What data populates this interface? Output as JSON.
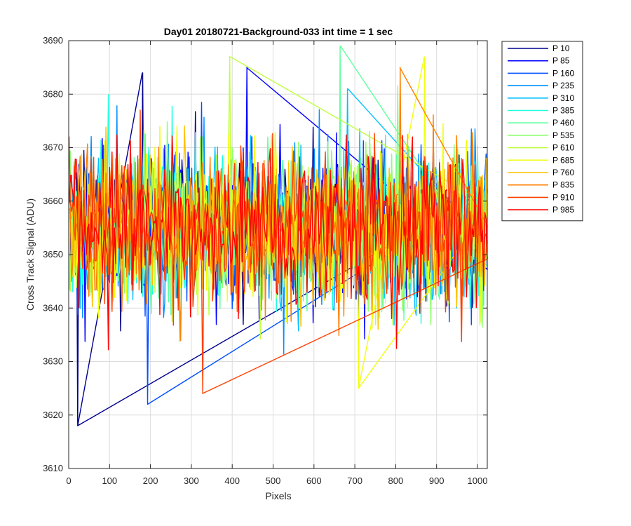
{
  "chart_data": {
    "type": "line",
    "title": "Day01 20180721-Background-033 int time = 1 sec",
    "xlabel": "Pixels",
    "ylabel": "Cross Track Signal (ADU)",
    "xlim": [
      0,
      1024
    ],
    "ylim": [
      3610,
      3690
    ],
    "xticks": [
      0,
      100,
      200,
      300,
      400,
      500,
      600,
      700,
      800,
      900,
      1000
    ],
    "yticks": [
      3610,
      3620,
      3630,
      3640,
      3650,
      3660,
      3670,
      3680,
      3690
    ],
    "grid": true,
    "legend_location": "outside-top-right",
    "noise_center": 3655,
    "noise_sigma": 7,
    "series": [
      {
        "name": "P 10",
        "color": "#00008F",
        "notable": [
          [
            22,
            3618
          ],
          [
            180,
            3684
          ]
        ]
      },
      {
        "name": "P 85",
        "color": "#0000FF",
        "notable": [
          [
            435,
            3685
          ]
        ]
      },
      {
        "name": "P 160",
        "color": "#0050FF",
        "notable": [
          [
            193,
            3622
          ]
        ]
      },
      {
        "name": "P 235",
        "color": "#0090FF",
        "notable": []
      },
      {
        "name": "P 310",
        "color": "#00C0FF",
        "notable": [
          [
            683,
            3681
          ]
        ]
      },
      {
        "name": "P 385",
        "color": "#20FFDF",
        "notable": []
      },
      {
        "name": "P 460",
        "color": "#60FF9F",
        "notable": [
          [
            665,
            3689
          ]
        ]
      },
      {
        "name": "P 535",
        "color": "#90FF70",
        "notable": []
      },
      {
        "name": "P 610",
        "color": "#C0FF40",
        "notable": [
          [
            395,
            3687
          ]
        ]
      },
      {
        "name": "P 685",
        "color": "#F0FF10",
        "notable": [
          [
            709,
            3625
          ],
          [
            870,
            3687
          ]
        ]
      },
      {
        "name": "P 760",
        "color": "#FFC000",
        "notable": []
      },
      {
        "name": "P 835",
        "color": "#FF8000",
        "notable": [
          [
            810,
            3685
          ]
        ]
      },
      {
        "name": "P 910",
        "color": "#FF4000",
        "notable": [
          [
            327,
            3624
          ]
        ]
      },
      {
        "name": "P 985",
        "color": "#FF0000",
        "notable": []
      }
    ]
  }
}
